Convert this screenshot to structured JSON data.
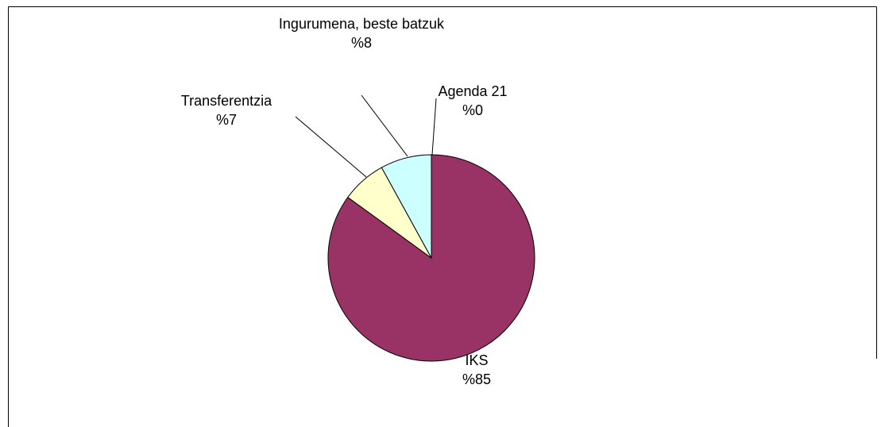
{
  "chart_data": {
    "type": "pie",
    "categories": [
      "IKS",
      "Transferentzia",
      "Ingurumena, beste batzuk",
      "Agenda 21"
    ],
    "values": [
      85,
      7,
      8,
      0
    ],
    "value_labels": [
      "%85",
      "%7",
      "%8",
      "%0"
    ],
    "colors": [
      "#993366",
      "#ffffcc",
      "#ccffff",
      "#ffffff"
    ]
  }
}
